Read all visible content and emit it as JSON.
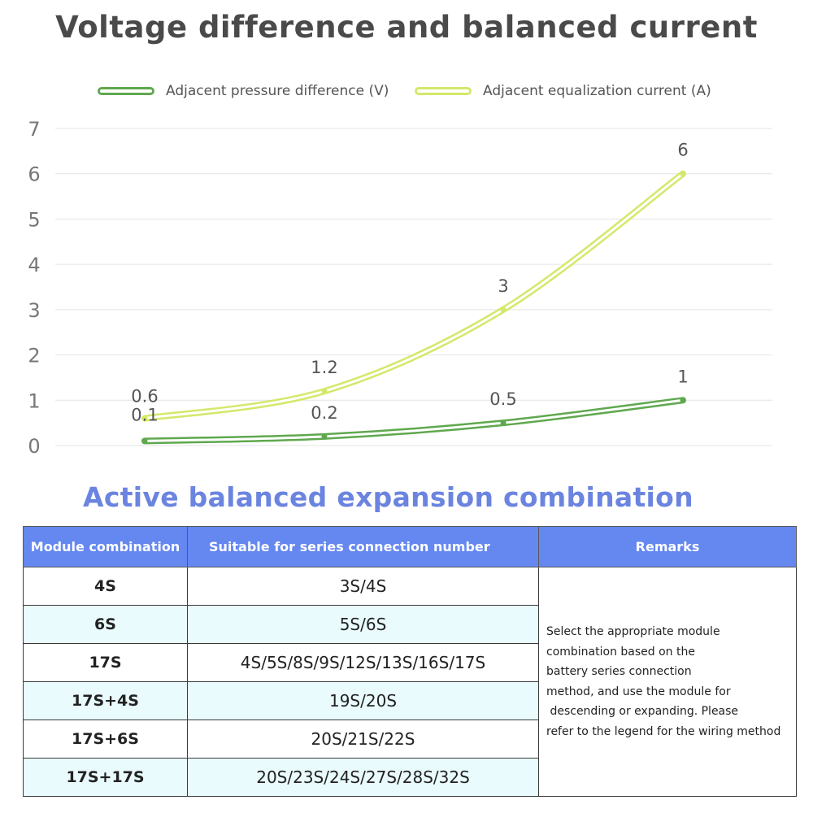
{
  "chart_data": {
    "type": "line",
    "title": "Voltage difference and balanced current",
    "x": [
      "",
      "",
      "",
      ""
    ],
    "series": [
      {
        "name": "Adjacent pressure difference (V)",
        "values": [
          0.1,
          0.2,
          0.5,
          1
        ],
        "color": "#5fa84e"
      },
      {
        "name": "Adjacent equalization current (A)",
        "values": [
          0.6,
          1.2,
          3,
          6
        ],
        "color": "#d4e86a"
      }
    ],
    "ylim": [
      0,
      7
    ],
    "yticks": [
      0,
      1,
      2,
      3,
      4,
      5,
      6,
      7
    ],
    "grid": true,
    "legend": "top-center"
  },
  "table_section": {
    "title": "Active balanced expansion combination",
    "headers": [
      "Module combination",
      "Suitable for series connection number",
      "Remarks"
    ],
    "rows": [
      {
        "module": "4S",
        "series": "3S/4S"
      },
      {
        "module": "6S",
        "series": "5S/6S"
      },
      {
        "module": "17S",
        "series": "4S/5S/8S/9S/12S/13S/16S/17S"
      },
      {
        "module": "17S+4S",
        "series": "19S/20S"
      },
      {
        "module": "17S+6S",
        "series": "20S/21S/22S"
      },
      {
        "module": "17S+17S",
        "series": "20S/23S/24S/27S/28S/32S"
      }
    ],
    "remarks_lines": [
      "Select the appropriate module",
      "combination based on the",
      "battery series connection",
      "method, and use the module for",
      " descending or expanding. Please",
      "refer to the legend for the wiring method"
    ]
  }
}
